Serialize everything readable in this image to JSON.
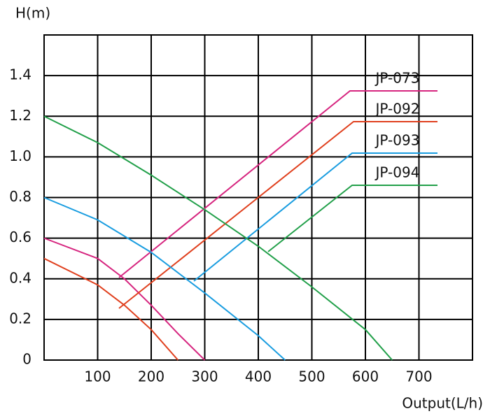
{
  "chart_data": {
    "type": "line",
    "y_label": "H(m)",
    "x_label": "Output(L/h)",
    "xlim": [
      0,
      800
    ],
    "xticks": [
      100,
      200,
      300,
      400,
      500,
      600,
      700
    ],
    "ylim": [
      0,
      1.6
    ],
    "yticks": [
      0,
      0.2,
      0.4,
      0.6,
      0.8,
      {
        "value": 1,
        "label": "1.0"
      },
      1.2,
      1.4
    ],
    "grid": true,
    "series": [
      {
        "name": "JP-073",
        "color": "#d6257f",
        "x": [
          0,
          100,
          150,
          200,
          250,
          300
        ],
        "values": [
          0.6,
          0.5,
          0.4,
          0.27,
          0.13,
          0
        ]
      },
      {
        "name": "JP-092",
        "color": "#e0401e",
        "x": [
          0,
          100,
          150,
          200,
          250
        ],
        "values": [
          0.5,
          0.37,
          0.27,
          0.15,
          0
        ]
      },
      {
        "name": "JP-093",
        "color": "#1a9de0",
        "x": [
          0,
          100,
          200,
          300,
          400,
          450
        ],
        "values": [
          0.8,
          0.69,
          0.53,
          0.33,
          0.12,
          0
        ]
      },
      {
        "name": "JP-094",
        "color": "#22a04a",
        "x": [
          0,
          100,
          200,
          300,
          400,
          500,
          600,
          650
        ],
        "values": [
          1.2,
          1.07,
          0.91,
          0.74,
          0.56,
          0.36,
          0.15,
          0
        ]
      }
    ]
  }
}
